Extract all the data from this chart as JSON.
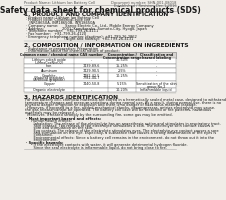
{
  "bg_color": "#f0ede8",
  "title": "Safety data sheet for chemical products (SDS)",
  "header_left": "Product Name: Lithium Ion Battery Cell",
  "header_right_line1": "Document number: SHN-001-08018",
  "header_right_line2": "Established / Revision: Dec.1.2016",
  "section1_title": "1. PRODUCT AND COMPANY IDENTIFICATION",
  "section1_lines": [
    "· Product name: Lithium Ion Battery Cell",
    "· Product code: Cylindrical-type cell",
    "   INR18650A, INR18650B, INR18650A",
    "· Company name:      Sanyo Electric Co., Ltd., Mobile Energy Company",
    "· Address:                2001, Kamikosaka, Sumoto-City, Hyogo, Japan",
    "· Telephone number:   +81-799-26-4111",
    "· Fax number:   +81-799-26-4120",
    "· Emergency telephone number (daytime): +81-799-26-2862",
    "                                  (Night and holiday): +81-799-26-4131"
  ],
  "section2_title": "2. COMPOSITION / INFORMATION ON INGREDIENTS",
  "section2_sub1": "· Substance or preparation: Preparation",
  "section2_sub2": "· Information about the chemical nature of product:",
  "table_cols": [
    0.01,
    0.33,
    0.55,
    0.73,
    0.99
  ],
  "table_headers": [
    "Common name / chemical name",
    "CAS number",
    "Concentration /\nConcentration range",
    "Classification and\nhazard labeling"
  ],
  "table_rows": [
    [
      "Lithium cobalt oxide\n(LiMnxCoxNixO2)",
      "-",
      "30-50%",
      "-"
    ],
    [
      "Iron",
      "7439-89-6",
      "15-25%",
      "-"
    ],
    [
      "Aluminum",
      "7429-90-5",
      "2-5%",
      "-"
    ],
    [
      "Graphite\n(Natural graphite)\n(Artificial graphite)",
      "7782-42-5\n7782-44-7",
      "10-25%",
      "-"
    ],
    [
      "Copper",
      "7440-50-8",
      "5-15%",
      "Sensitization of the skin\ngroup No.2"
    ],
    [
      "Organic electrolyte",
      "-",
      "10-20%",
      "Inflammable liquid"
    ]
  ],
  "section3_title": "3. HAZARDS IDENTIFICATION",
  "section3_lines": [
    "For this battery cell, chemical materials are stored in a hermetically sealed metal case, designed to withstand",
    "temperature changes and pressure-variations during normal use. As a result, during normal-use, there is no",
    "physical danger of ignition or explosion and there is no danger of hazardous material leakage.",
    "  However, if exposed to a fire, added mechanical shocks, decompresses, entries electrolyte may cause.",
    "the gas release cannot be operated. The battery cell case will be breached or fire patterns, hazardous",
    "materials may be released.",
    "  Moreover, if heated strongly by the surrounding fire, some gas may be emitted."
  ],
  "section3_bullet1": "· Most important hazard and effects:",
  "section3_human": "  Human health effects:",
  "section3_human_lines": [
    "    Inhalation: The release of the electrolyte has an anaesthesia action and stimulates in respiratory tract.",
    "    Skin contact: The release of the electrolyte stimulates a skin. The electrolyte skin contact causes a",
    "    sore and stimulation on the skin.",
    "    Eye contact: The release of the electrolyte stimulates eyes. The electrolyte eye contact causes a sore",
    "    and stimulation on the eye. Especially, a substance that causes a strong inflammation of the eyes is",
    "    contained.",
    "    Environmental effects: Since a battery cell remains in the environment, do not throw out it into the",
    "    environment."
  ],
  "section3_specific": "· Specific hazards:",
  "section3_specific_lines": [
    "    If the electrolyte contacts with water, it will generate detrimental hydrogen fluoride.",
    "    Since the seal electrolyte is inflammable liquid, do not bring close to fire."
  ],
  "text_color": "#1a1a1a",
  "gray_color": "#555555",
  "line_color": "#888888",
  "title_fs": 5.5,
  "section_fs": 4.2,
  "body_fs": 3.0,
  "small_fs": 2.6
}
